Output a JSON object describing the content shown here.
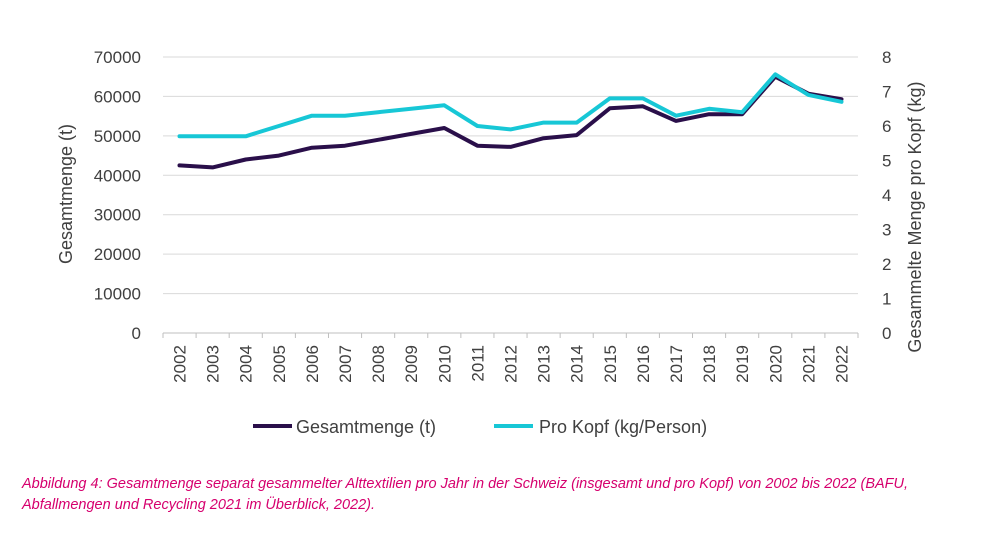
{
  "chart_data": {
    "type": "line",
    "categories": [
      "2002",
      "2003",
      "2004",
      "2005",
      "2006",
      "2007",
      "2008",
      "2009",
      "2010",
      "2011",
      "2012",
      "2013",
      "2014",
      "2015",
      "2016",
      "2017",
      "2018",
      "2019",
      "2020",
      "2021",
      "2022"
    ],
    "series": [
      {
        "name": "Gesamtmenge (t)",
        "axis": "left",
        "color": "#2a0f4a",
        "values": [
          42500,
          42000,
          44000,
          45000,
          47000,
          47500,
          49000,
          50500,
          52000,
          47500,
          47200,
          49400,
          50200,
          57000,
          57500,
          53800,
          55500,
          55500,
          65000,
          60700,
          59300
        ]
      },
      {
        "name": "Pro Kopf (kg/Person)",
        "axis": "right",
        "color": "#17c7d6",
        "values": [
          5.7,
          5.7,
          5.7,
          6.0,
          6.3,
          6.3,
          6.4,
          6.5,
          6.6,
          6.0,
          5.9,
          6.1,
          6.1,
          6.8,
          6.8,
          6.3,
          6.5,
          6.4,
          7.5,
          6.9,
          6.7
        ]
      }
    ],
    "y_left": {
      "label": "Gesamtmenge (t)",
      "ylim": [
        0,
        70000
      ],
      "ticks": [
        "0",
        "10000",
        "20000",
        "30000",
        "40000",
        "50000",
        "60000",
        "70000"
      ]
    },
    "y_right": {
      "label": "Gesammelte Menge pro Kopf (kg)",
      "ylim": [
        0,
        8
      ],
      "ticks": [
        "0",
        "1",
        "2",
        "3",
        "4",
        "5",
        "6",
        "7",
        "8"
      ]
    },
    "grid": true,
    "legend": "bottom"
  },
  "caption": "Abbildung 4: Gesamtmenge separat gesammelter Alttextilien pro Jahr in der Schweiz (insgesamt und pro Kopf) von 2002 bis 2022 (BAFU, Abfallmengen und Recycling 2021 im Überblick, 2022)."
}
